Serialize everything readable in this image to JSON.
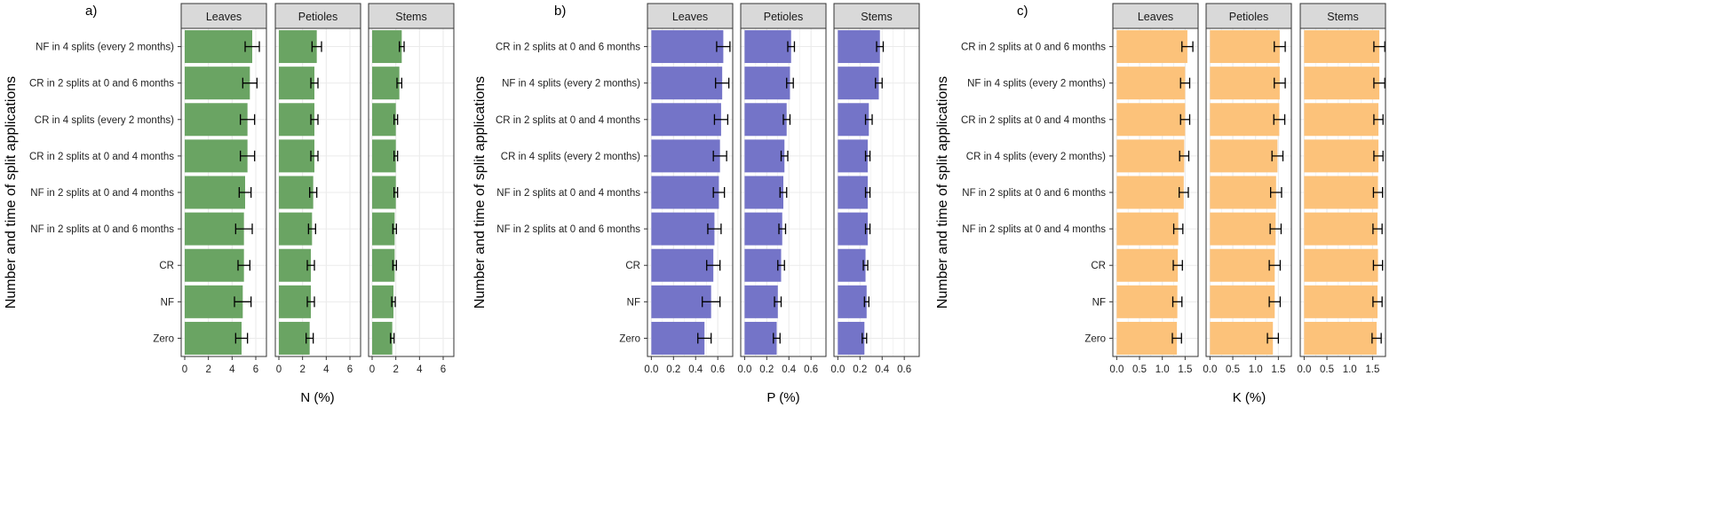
{
  "figure": {
    "ylabel": "Number and time of split applications",
    "facet_labels": [
      "Leaves",
      "Petioles",
      "Stems"
    ]
  },
  "colors": {
    "N": "#6aa463",
    "P": "#7474c8",
    "K": "#fcc27a",
    "strip_bg": "#d9d9d9",
    "grid": "#ebebeb",
    "border": "#333333",
    "text": "#222222"
  },
  "chart_data": [
    {
      "type": "bar",
      "orientation": "horizontal",
      "panel_label": "a)",
      "xlabel": "N (%)",
      "xlim": [
        -0.3,
        6.9
      ],
      "ticks": [
        0,
        2,
        4,
        6
      ],
      "tick_labels": [
        "0",
        "2",
        "4",
        "6"
      ],
      "color_key": "N",
      "categories": [
        "NF in 4 splits (every 2 months)",
        "CR in 2 splits at 0 and 6 months",
        "CR in 4 splits (every 2 months)",
        "CR in 2 splits at 0 and 4 months",
        "NF in 2 splits at 0 and 4 months",
        "NF in 2 splits at 0 and 6 months",
        "CR",
        "NF",
        "Zero"
      ],
      "series": [
        {
          "name": "Leaves",
          "values": [
            5.7,
            5.5,
            5.3,
            5.3,
            5.1,
            5.0,
            5.0,
            4.9,
            4.8
          ],
          "errors": [
            0.6,
            0.6,
            0.6,
            0.6,
            0.5,
            0.7,
            0.5,
            0.7,
            0.5
          ]
        },
        {
          "name": "Petioles",
          "values": [
            3.2,
            3.0,
            3.0,
            3.0,
            2.9,
            2.8,
            2.7,
            2.7,
            2.6
          ],
          "errors": [
            0.4,
            0.3,
            0.3,
            0.3,
            0.3,
            0.3,
            0.3,
            0.3,
            0.3
          ]
        },
        {
          "name": "Stems",
          "values": [
            2.5,
            2.3,
            2.0,
            2.0,
            2.0,
            1.9,
            1.9,
            1.8,
            1.7
          ],
          "errors": [
            0.2,
            0.2,
            0.15,
            0.15,
            0.15,
            0.15,
            0.15,
            0.15,
            0.15
          ]
        }
      ]
    },
    {
      "type": "bar",
      "orientation": "horizontal",
      "panel_label": "b)",
      "xlabel": "P (%)",
      "xlim": [
        -0.035,
        0.735
      ],
      "ticks": [
        0,
        0.1,
        0.2,
        0.3,
        0.4,
        0.5,
        0.6
      ],
      "tick_labels": [
        "0.0",
        "0.2",
        "0.4",
        "0.6"
      ],
      "tick_label_values": [
        0,
        0.2,
        0.4,
        0.6
      ],
      "color_key": "P",
      "categories": [
        "CR in 2 splits at 0 and 6 months",
        "NF in 4 splits (every 2 months)",
        "CR in 2 splits at 0 and 4 months",
        "CR in 4 splits (every 2 months)",
        "NF in 2 splits at 0 and 4 months",
        "NF in 2 splits at 0 and 6 months",
        "CR",
        "NF",
        "Zero"
      ],
      "series": [
        {
          "name": "Leaves",
          "values": [
            0.65,
            0.64,
            0.63,
            0.62,
            0.61,
            0.57,
            0.56,
            0.54,
            0.48
          ],
          "errors": [
            0.06,
            0.06,
            0.06,
            0.06,
            0.05,
            0.06,
            0.06,
            0.08,
            0.06
          ]
        },
        {
          "name": "Petioles",
          "values": [
            0.42,
            0.41,
            0.38,
            0.36,
            0.35,
            0.34,
            0.33,
            0.3,
            0.29
          ],
          "errors": [
            0.03,
            0.03,
            0.03,
            0.03,
            0.03,
            0.03,
            0.03,
            0.03,
            0.03
          ]
        },
        {
          "name": "Stems",
          "values": [
            0.38,
            0.37,
            0.28,
            0.27,
            0.27,
            0.27,
            0.25,
            0.26,
            0.24
          ],
          "errors": [
            0.03,
            0.03,
            0.03,
            0.02,
            0.02,
            0.02,
            0.02,
            0.02,
            0.02
          ]
        }
      ]
    },
    {
      "type": "bar",
      "orientation": "horizontal",
      "panel_label": "c)",
      "xlabel": "K (%)",
      "xlim": [
        -0.085,
        1.785
      ],
      "ticks": [
        0,
        0.25,
        0.5,
        0.75,
        1.0,
        1.25,
        1.5
      ],
      "tick_labels": [
        "0.0",
        "0.5",
        "1.0",
        "1.5"
      ],
      "tick_label_values": [
        0,
        0.5,
        1.0,
        1.5
      ],
      "color_key": "K",
      "categories": [
        "CR in 2 splits at 0 and 6 months",
        "NF in 4 splits (every 2 months)",
        "CR in 2 splits at 0 and 4 months",
        "CR in 4 splits (every 2 months)",
        "NF in 2 splits at 0 and 6 months",
        "NF in 2 splits at 0 and 4 months",
        "CR",
        "NF",
        "Zero"
      ],
      "series": [
        {
          "name": "Leaves",
          "values": [
            1.55,
            1.5,
            1.5,
            1.48,
            1.47,
            1.35,
            1.34,
            1.33,
            1.32
          ],
          "errors": [
            0.12,
            0.1,
            0.1,
            0.1,
            0.1,
            0.1,
            0.1,
            0.1,
            0.1
          ]
        },
        {
          "name": "Petioles",
          "values": [
            1.53,
            1.53,
            1.52,
            1.48,
            1.45,
            1.44,
            1.42,
            1.42,
            1.38
          ],
          "errors": [
            0.12,
            0.12,
            0.12,
            0.12,
            0.12,
            0.12,
            0.12,
            0.12,
            0.12
          ]
        },
        {
          "name": "Stems",
          "values": [
            1.65,
            1.65,
            1.63,
            1.63,
            1.62,
            1.61,
            1.62,
            1.61,
            1.59
          ],
          "errors": [
            0.12,
            0.12,
            0.1,
            0.1,
            0.1,
            0.1,
            0.1,
            0.1,
            0.1
          ]
        }
      ]
    }
  ]
}
